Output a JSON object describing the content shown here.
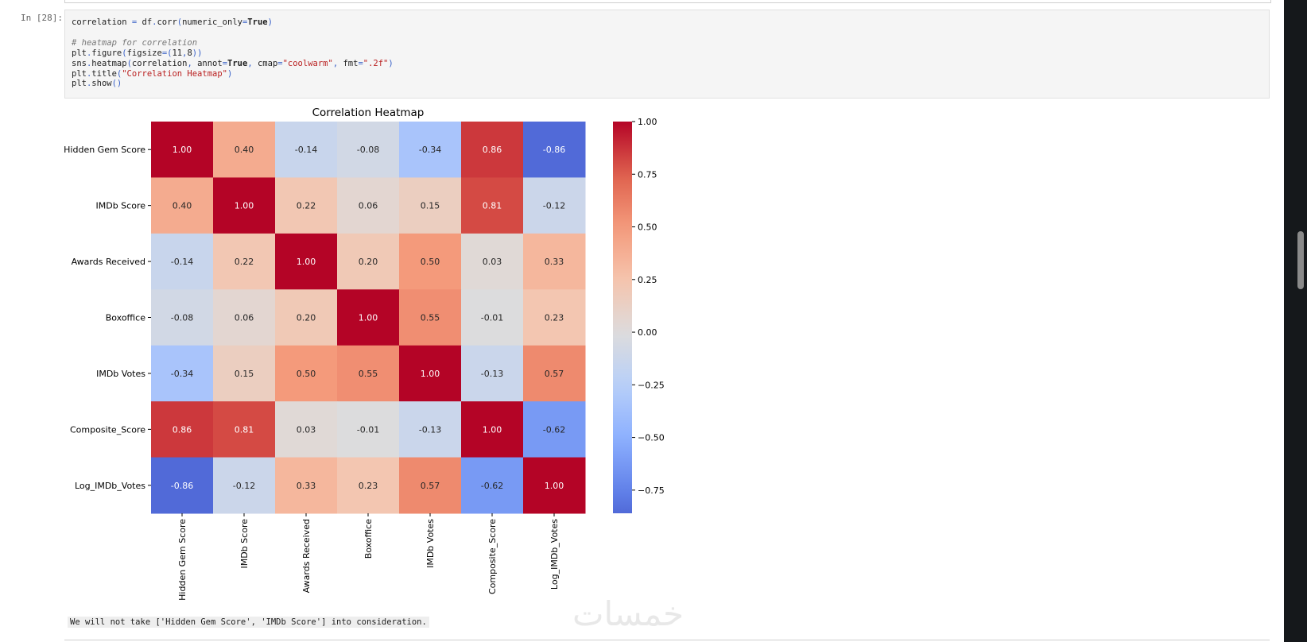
{
  "cell": {
    "prompt": "In [28]:",
    "code_lines": [
      "correlation = df.corr(numeric_only=True)",
      "",
      "# heatmap for correlation",
      "plt.figure(figsize=(11,8))",
      "sns.heatmap(correlation, annot=True, cmap=\"coolwarm\", fmt=\".2f\")",
      "plt.title(\"Correlation Heatmap\")",
      "plt.show()"
    ]
  },
  "chart_data": {
    "type": "heatmap",
    "title": "Correlation Heatmap",
    "colormap": "coolwarm",
    "row_labels": [
      "Hidden Gem Score",
      "IMDb Score",
      "Awards Received",
      "Boxoffice",
      "IMDb Votes",
      "Composite_Score",
      "Log_IMDb_Votes"
    ],
    "col_labels": [
      "Hidden Gem Score",
      "IMDb Score",
      "Awards Received",
      "Boxoffice",
      "IMDb Votes",
      "Composite_Score",
      "Log_IMDb_Votes"
    ],
    "values": [
      [
        1.0,
        0.4,
        -0.14,
        -0.08,
        -0.34,
        0.86,
        -0.86
      ],
      [
        0.4,
        1.0,
        0.22,
        0.06,
        0.15,
        0.81,
        -0.12
      ],
      [
        -0.14,
        0.22,
        1.0,
        0.2,
        0.5,
        0.03,
        0.33
      ],
      [
        -0.08,
        0.06,
        0.2,
        1.0,
        0.55,
        -0.01,
        0.23
      ],
      [
        -0.34,
        0.15,
        0.5,
        0.55,
        1.0,
        -0.13,
        0.57
      ],
      [
        0.86,
        0.81,
        0.03,
        -0.01,
        -0.13,
        1.0,
        -0.62
      ],
      [
        -0.86,
        -0.12,
        0.33,
        0.23,
        0.57,
        -0.62,
        1.0
      ]
    ],
    "colorbar": {
      "range": [
        -0.86,
        1.0
      ],
      "ticks": [
        "1.00",
        "0.75",
        "0.50",
        "0.25",
        "0.00",
        "−0.25",
        "−0.50",
        "−0.75"
      ],
      "tick_values": [
        1,
        0.75,
        0.5,
        0.25,
        0,
        -0.25,
        -0.5,
        -0.75
      ]
    }
  },
  "output_text": "We will not take ['Hidden Gem Score', 'IMDb Score'] into consideration.",
  "watermark": "خمسات"
}
